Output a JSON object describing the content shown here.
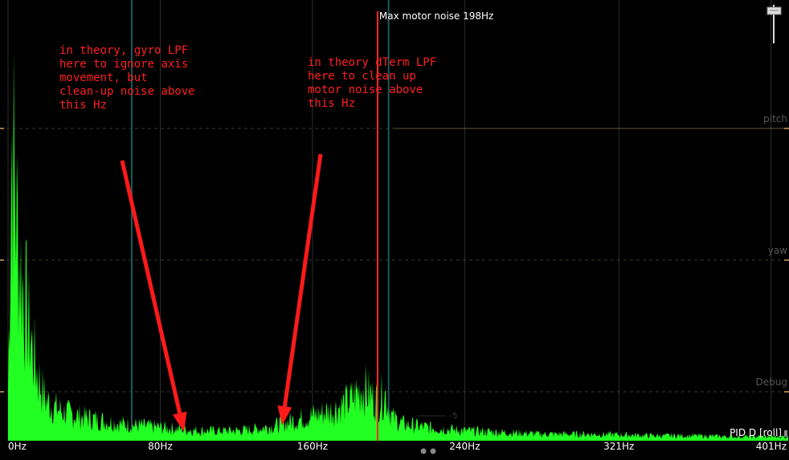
{
  "chart_data": {
    "type": "area",
    "title": "",
    "xlabel": "",
    "ylabel": "",
    "x_unit": "Hz",
    "xlim": [
      0,
      410
    ],
    "x_ticks": [
      {
        "value": 0,
        "label": "0Hz"
      },
      {
        "value": 80,
        "label": "80Hz"
      },
      {
        "value": 160,
        "label": "160Hz"
      },
      {
        "value": 240,
        "label": "240Hz"
      },
      {
        "value": 321,
        "label": "321Hz"
      },
      {
        "value": 401,
        "label": "401Hz"
      }
    ],
    "lanes": [
      "pitch",
      "yaw",
      "Debug"
    ],
    "series_label": "PID D [roll]",
    "series_color": "#22ff22",
    "spectrum_relative": [
      [
        0,
        0.15
      ],
      [
        2,
        0.93
      ],
      [
        4,
        0.7
      ],
      [
        6,
        0.55
      ],
      [
        8,
        0.45
      ],
      [
        10,
        0.38
      ],
      [
        12,
        0.3
      ],
      [
        14,
        0.24
      ],
      [
        16,
        0.19
      ],
      [
        18,
        0.15
      ],
      [
        20,
        0.12
      ],
      [
        24,
        0.1
      ],
      [
        28,
        0.09
      ],
      [
        32,
        0.08
      ],
      [
        36,
        0.075
      ],
      [
        40,
        0.07
      ],
      [
        50,
        0.06
      ],
      [
        60,
        0.05
      ],
      [
        70,
        0.045
      ],
      [
        80,
        0.04
      ],
      [
        90,
        0.035
      ],
      [
        100,
        0.03
      ],
      [
        110,
        0.03
      ],
      [
        120,
        0.03
      ],
      [
        130,
        0.035
      ],
      [
        140,
        0.045
      ],
      [
        150,
        0.06
      ],
      [
        160,
        0.075
      ],
      [
        170,
        0.09
      ],
      [
        180,
        0.12
      ],
      [
        186,
        0.16
      ],
      [
        190,
        0.14
      ],
      [
        194,
        0.12
      ],
      [
        198,
        0.14
      ],
      [
        202,
        0.07
      ],
      [
        208,
        0.05
      ],
      [
        220,
        0.04
      ],
      [
        240,
        0.03
      ],
      [
        260,
        0.025
      ],
      [
        280,
        0.02
      ],
      [
        300,
        0.02
      ],
      [
        321,
        0.018
      ],
      [
        340,
        0.015
      ],
      [
        360,
        0.015
      ],
      [
        380,
        0.012
      ],
      [
        401,
        0.012
      ],
      [
        410,
        0.012
      ]
    ],
    "markers": [
      {
        "name": "max-motor-noise",
        "value": 198,
        "label": "Max motor noise 198Hz",
        "color": "#ff2a2a"
      }
    ],
    "reference_lines": [
      {
        "name": "gyro-lpf",
        "value": 65,
        "color": "#1b5a5a"
      },
      {
        "name": "dterm-lpf",
        "value": 200,
        "color": "#1b5a5a"
      }
    ],
    "annotations": [
      {
        "name": "gyro-lpf-note",
        "lines": [
          "in theory, gyro LPF",
          "here to ignore axis",
          "movement, but",
          "clean-up noise above",
          "this Hz"
        ],
        "color": "#ff2020"
      },
      {
        "name": "dterm-lpf-note",
        "lines": [
          "in theory dTerm LPF",
          "here to clean up",
          "motor noise above",
          "this Hz"
        ],
        "color": "#ff2020"
      }
    ],
    "faint_marks": [
      "-5"
    ],
    "grid": true
  }
}
